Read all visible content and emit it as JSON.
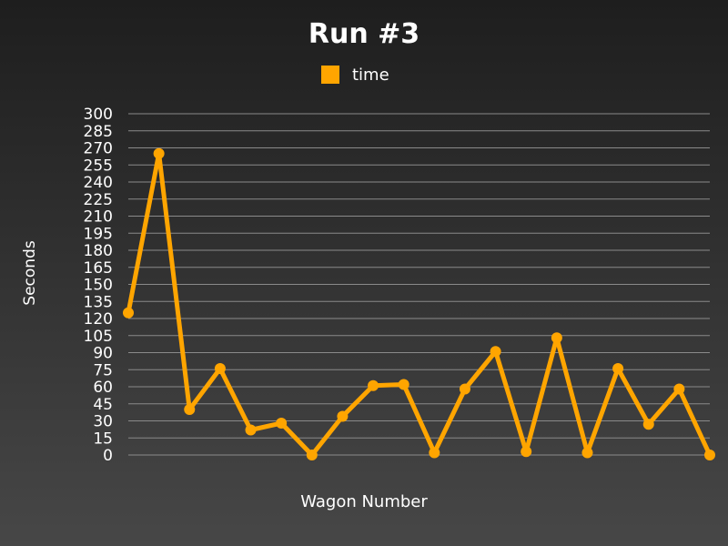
{
  "chart_data": {
    "type": "line",
    "title": "Run #3",
    "xlabel": "Wagon Number",
    "ylabel": "Seconds",
    "ylim": [
      0,
      300
    ],
    "yticks": [
      0,
      15,
      30,
      45,
      60,
      75,
      90,
      105,
      120,
      135,
      150,
      165,
      180,
      195,
      210,
      225,
      240,
      255,
      270,
      285,
      300
    ],
    "grid": true,
    "legend_position": "top",
    "series": [
      {
        "name": "time",
        "color": "#ffa500",
        "values": [
          125,
          265,
          40,
          76,
          22,
          28,
          0,
          34,
          61,
          62,
          2,
          58,
          91,
          3,
          103,
          2,
          76,
          27,
          58,
          0
        ]
      }
    ]
  }
}
